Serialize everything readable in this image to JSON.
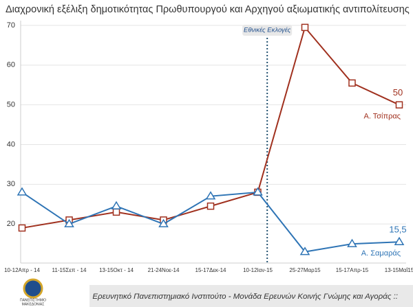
{
  "chart_data": {
    "type": "line",
    "title": "Διαχρονική εξέλιξη δημοτικότητας Πρωθυπουργού και Αρχηγού αξιωματικής αντιπολίτευσης",
    "annotation": "Εθνικές Εκλογές",
    "categories": [
      "10-12Απρ - 14",
      "11-15Σεπ - 14",
      "13-15Οκτ - 14",
      "21-24Νοε-14",
      "15-17Δεκ-14",
      "10-12Ιαν-15",
      "25-27Μαρ15",
      "15-17Απρ-15",
      "13-15Μαΐ15"
    ],
    "series": [
      {
        "name": "Α. Τσίπρας",
        "color": "#a0301e",
        "marker": "square",
        "values": [
          19,
          21,
          23,
          21,
          24.5,
          28,
          69.5,
          55.5,
          50
        ],
        "value_labels": [
          null,
          null,
          null,
          null,
          null,
          null,
          null,
          null,
          "50"
        ]
      },
      {
        "name": "Α. Σαμαράς",
        "color": "#2e74b5",
        "marker": "triangle",
        "values": [
          28,
          20,
          24.5,
          20,
          27,
          28,
          13,
          15,
          15.5
        ],
        "value_labels": [
          null,
          null,
          null,
          null,
          null,
          null,
          null,
          null,
          "15,5"
        ]
      }
    ],
    "ylim": [
      10,
      70
    ],
    "yticks": [
      20,
      30,
      40,
      50,
      60,
      70
    ],
    "grid": true,
    "source": "Ερευνητικό Πανεπιστημιακό Ινστιτούτο - Μονάδα Ερευνών Κοινής Γνώμης και Αγοράς ::",
    "logo": [
      "ΠΑΝΕΠΙΣΤΗΜΙΟ",
      "ΜΑΚΕΔΟΝΙΑΣ"
    ]
  }
}
